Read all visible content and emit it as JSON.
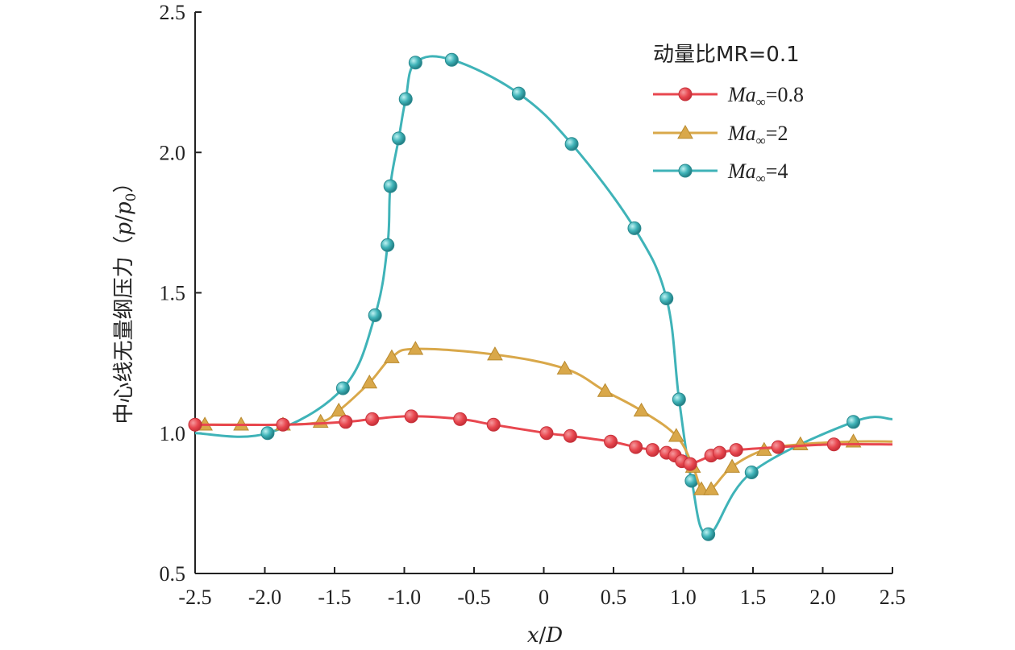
{
  "chart_data": {
    "type": "line",
    "title": "",
    "xlabel": "x/D",
    "ylabel": "中心线无量纲压力（p/p0）",
    "xlim": [
      -2.5,
      2.5
    ],
    "ylim": [
      0.5,
      2.5
    ],
    "xticks": [
      -2.5,
      -2.0,
      -1.5,
      -1.0,
      -0.5,
      0,
      0.5,
      1.0,
      1.5,
      2.0,
      2.5
    ],
    "xtick_labels": [
      "-2.5",
      "-2.0",
      "-1.5",
      "-1.0",
      "-0.5",
      "0",
      "0.5",
      "1.0",
      "1.5",
      "2.0",
      "2.5"
    ],
    "yticks": [
      0.5,
      1.0,
      1.5,
      2.0,
      2.5
    ],
    "ytick_labels": [
      "0.5",
      "1.0",
      "1.5",
      "2.0",
      "2.5"
    ],
    "grid": false,
    "legend_position": "top-right",
    "legend_title": "动量比MR=0.1",
    "series": [
      {
        "name": "Ma∞=0.8",
        "marker": "circle",
        "color": "#e8474f",
        "x": [
          -2.5,
          -1.87,
          -1.42,
          -1.23,
          -0.95,
          -0.6,
          -0.36,
          0.02,
          0.19,
          0.48,
          0.66,
          0.78,
          0.88,
          0.94,
          0.99,
          1.05,
          1.2,
          1.26,
          1.38,
          1.68,
          2.08
        ],
        "y": [
          1.03,
          1.03,
          1.04,
          1.05,
          1.06,
          1.05,
          1.03,
          1.0,
          0.99,
          0.97,
          0.95,
          0.94,
          0.93,
          0.92,
          0.9,
          0.89,
          0.92,
          0.93,
          0.94,
          0.95,
          0.96
        ]
      },
      {
        "name": "Ma∞=2",
        "marker": "triangle",
        "color": "#d9a84a",
        "x": [
          -2.43,
          -2.17,
          -1.87,
          -1.6,
          -1.47,
          -1.25,
          -1.09,
          -0.92,
          -0.35,
          0.15,
          0.44,
          0.7,
          0.95,
          1.07,
          1.13,
          1.2,
          1.35,
          1.58,
          1.84,
          2.22
        ],
        "y": [
          1.03,
          1.03,
          1.03,
          1.04,
          1.08,
          1.18,
          1.27,
          1.3,
          1.28,
          1.23,
          1.15,
          1.08,
          0.99,
          0.88,
          0.8,
          0.8,
          0.88,
          0.94,
          0.96,
          0.97
        ]
      },
      {
        "name": "Ma∞=4",
        "marker": "sphere",
        "color": "#3fb3b8",
        "x": [
          -1.98,
          -1.44,
          -1.21,
          -1.12,
          -1.1,
          -1.04,
          -0.99,
          -0.92,
          -0.66,
          -0.18,
          0.2,
          0.65,
          0.88,
          0.97,
          1.06,
          1.18,
          1.49,
          2.22
        ],
        "y": [
          1.0,
          1.16,
          1.42,
          1.67,
          1.88,
          2.05,
          2.19,
          2.32,
          2.33,
          2.21,
          2.03,
          1.73,
          1.48,
          1.12,
          0.83,
          0.64,
          0.86,
          1.04
        ]
      }
    ],
    "legend_labels": [
      {
        "pre": "Ma",
        "sub": "∞",
        "post": "=0.8"
      },
      {
        "pre": "Ma",
        "sub": "∞",
        "post": "=2"
      },
      {
        "pre": "Ma",
        "sub": "∞",
        "post": "=4"
      }
    ],
    "ylabel_parts": {
      "cn": "中心线无量纲压力（",
      "p": "p",
      "slash": "/",
      "p0": "p",
      "zero": "0",
      "close": "）"
    },
    "xlabel_parts": {
      "x": "x",
      "slash": "/",
      "d": "D"
    }
  }
}
